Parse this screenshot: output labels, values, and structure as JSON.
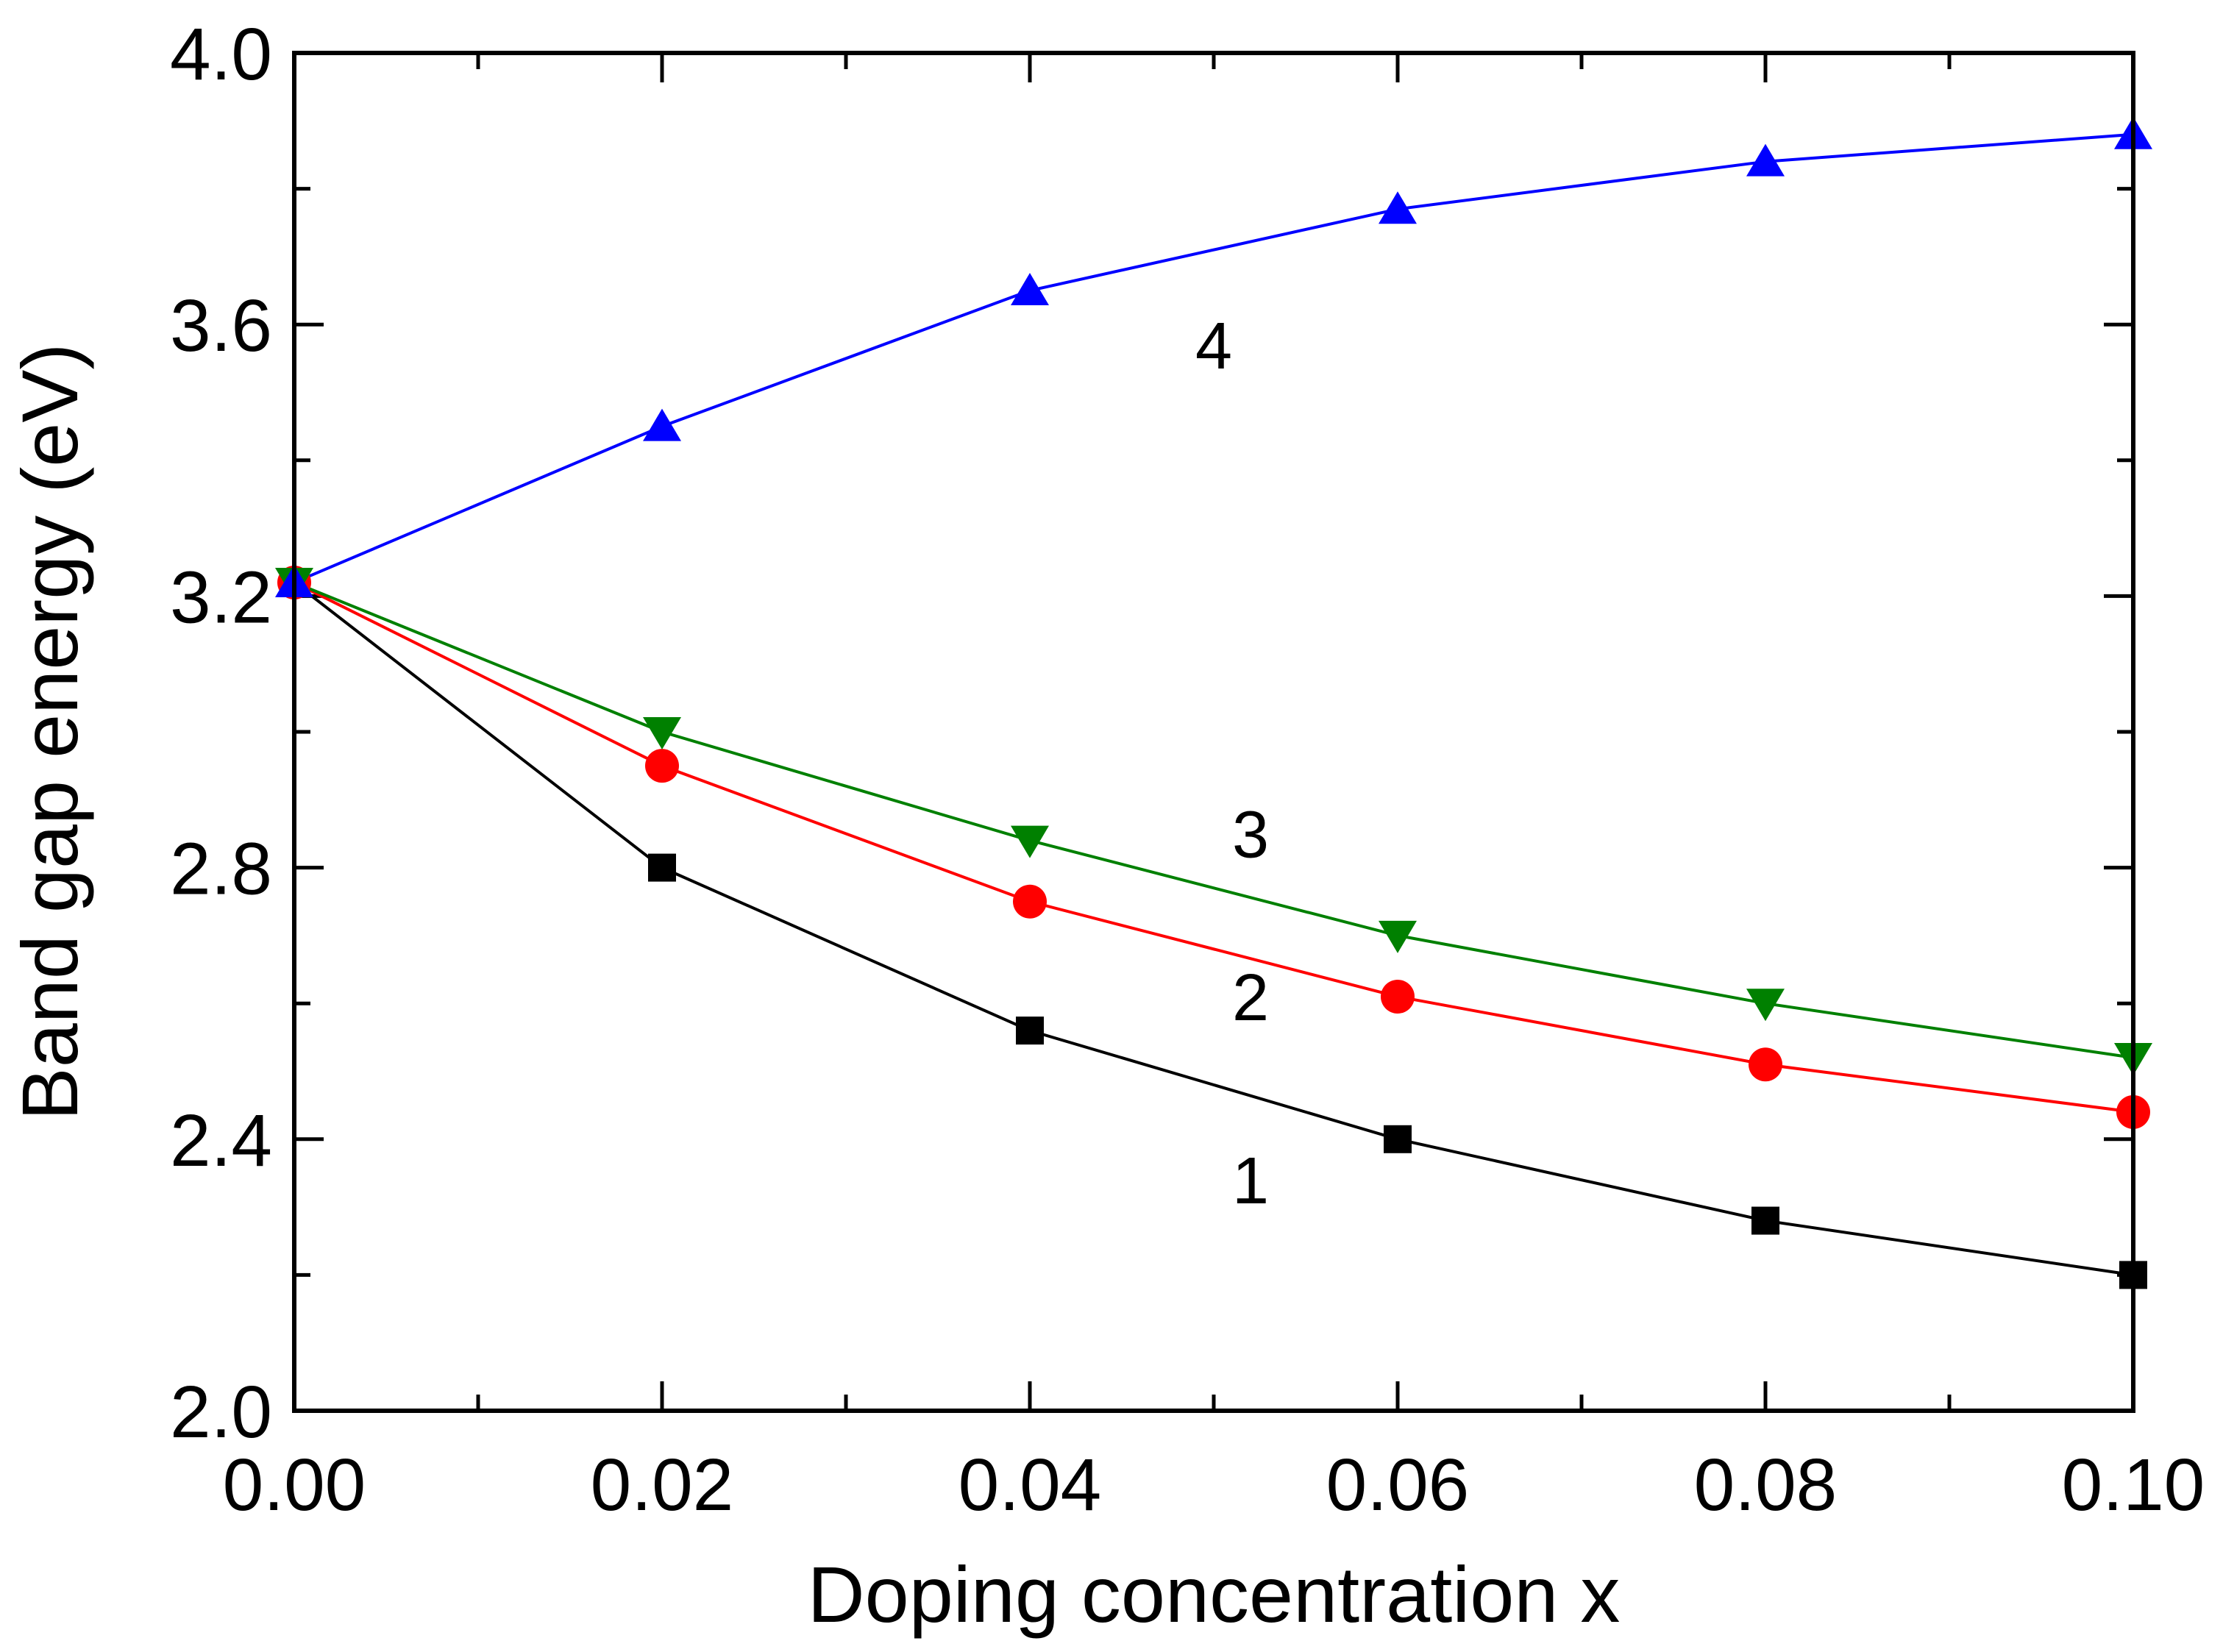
{
  "chart_data": {
    "type": "line",
    "title": "",
    "xlabel": "Doping concentration x",
    "ylabel": "Band gap energy (eV)",
    "xlim": [
      0,
      0.1
    ],
    "ylim": [
      2.0,
      4.0
    ],
    "x": [
      0,
      0.02,
      0.04,
      0.06,
      0.08,
      0.1
    ],
    "xticks": [
      0,
      0.02,
      0.04,
      0.06,
      0.08,
      0.1
    ],
    "xtick_labels": [
      "0.00",
      "0.02",
      "0.04",
      "0.06",
      "0.08",
      "0.10"
    ],
    "yticks": [
      2.0,
      2.4,
      2.8,
      3.2,
      3.6,
      4.0
    ],
    "ytick_labels": [
      "2.0",
      "2.4",
      "2.8",
      "3.2",
      "3.6",
      "4.0"
    ],
    "grid": false,
    "legend": "none",
    "series": [
      {
        "name": "1",
        "color": "#000000",
        "marker": "square",
        "values": [
          3.22,
          2.8,
          2.56,
          2.4,
          2.28,
          2.2
        ],
        "label_at": [
          0.052,
          2.34
        ]
      },
      {
        "name": "2",
        "color": "#ff0000",
        "marker": "circle",
        "values": [
          3.22,
          2.95,
          2.75,
          2.61,
          2.51,
          2.44
        ],
        "label_at": [
          0.052,
          2.61
        ]
      },
      {
        "name": "3",
        "color": "#008000",
        "marker": "triangle-down",
        "values": [
          3.22,
          3.0,
          2.84,
          2.7,
          2.6,
          2.52
        ],
        "label_at": [
          0.052,
          2.85
        ]
      },
      {
        "name": "4",
        "color": "#0000ff",
        "marker": "triangle-up",
        "values": [
          3.22,
          3.45,
          3.65,
          3.77,
          3.84,
          3.88
        ],
        "label_at": [
          0.05,
          3.57
        ]
      }
    ]
  }
}
